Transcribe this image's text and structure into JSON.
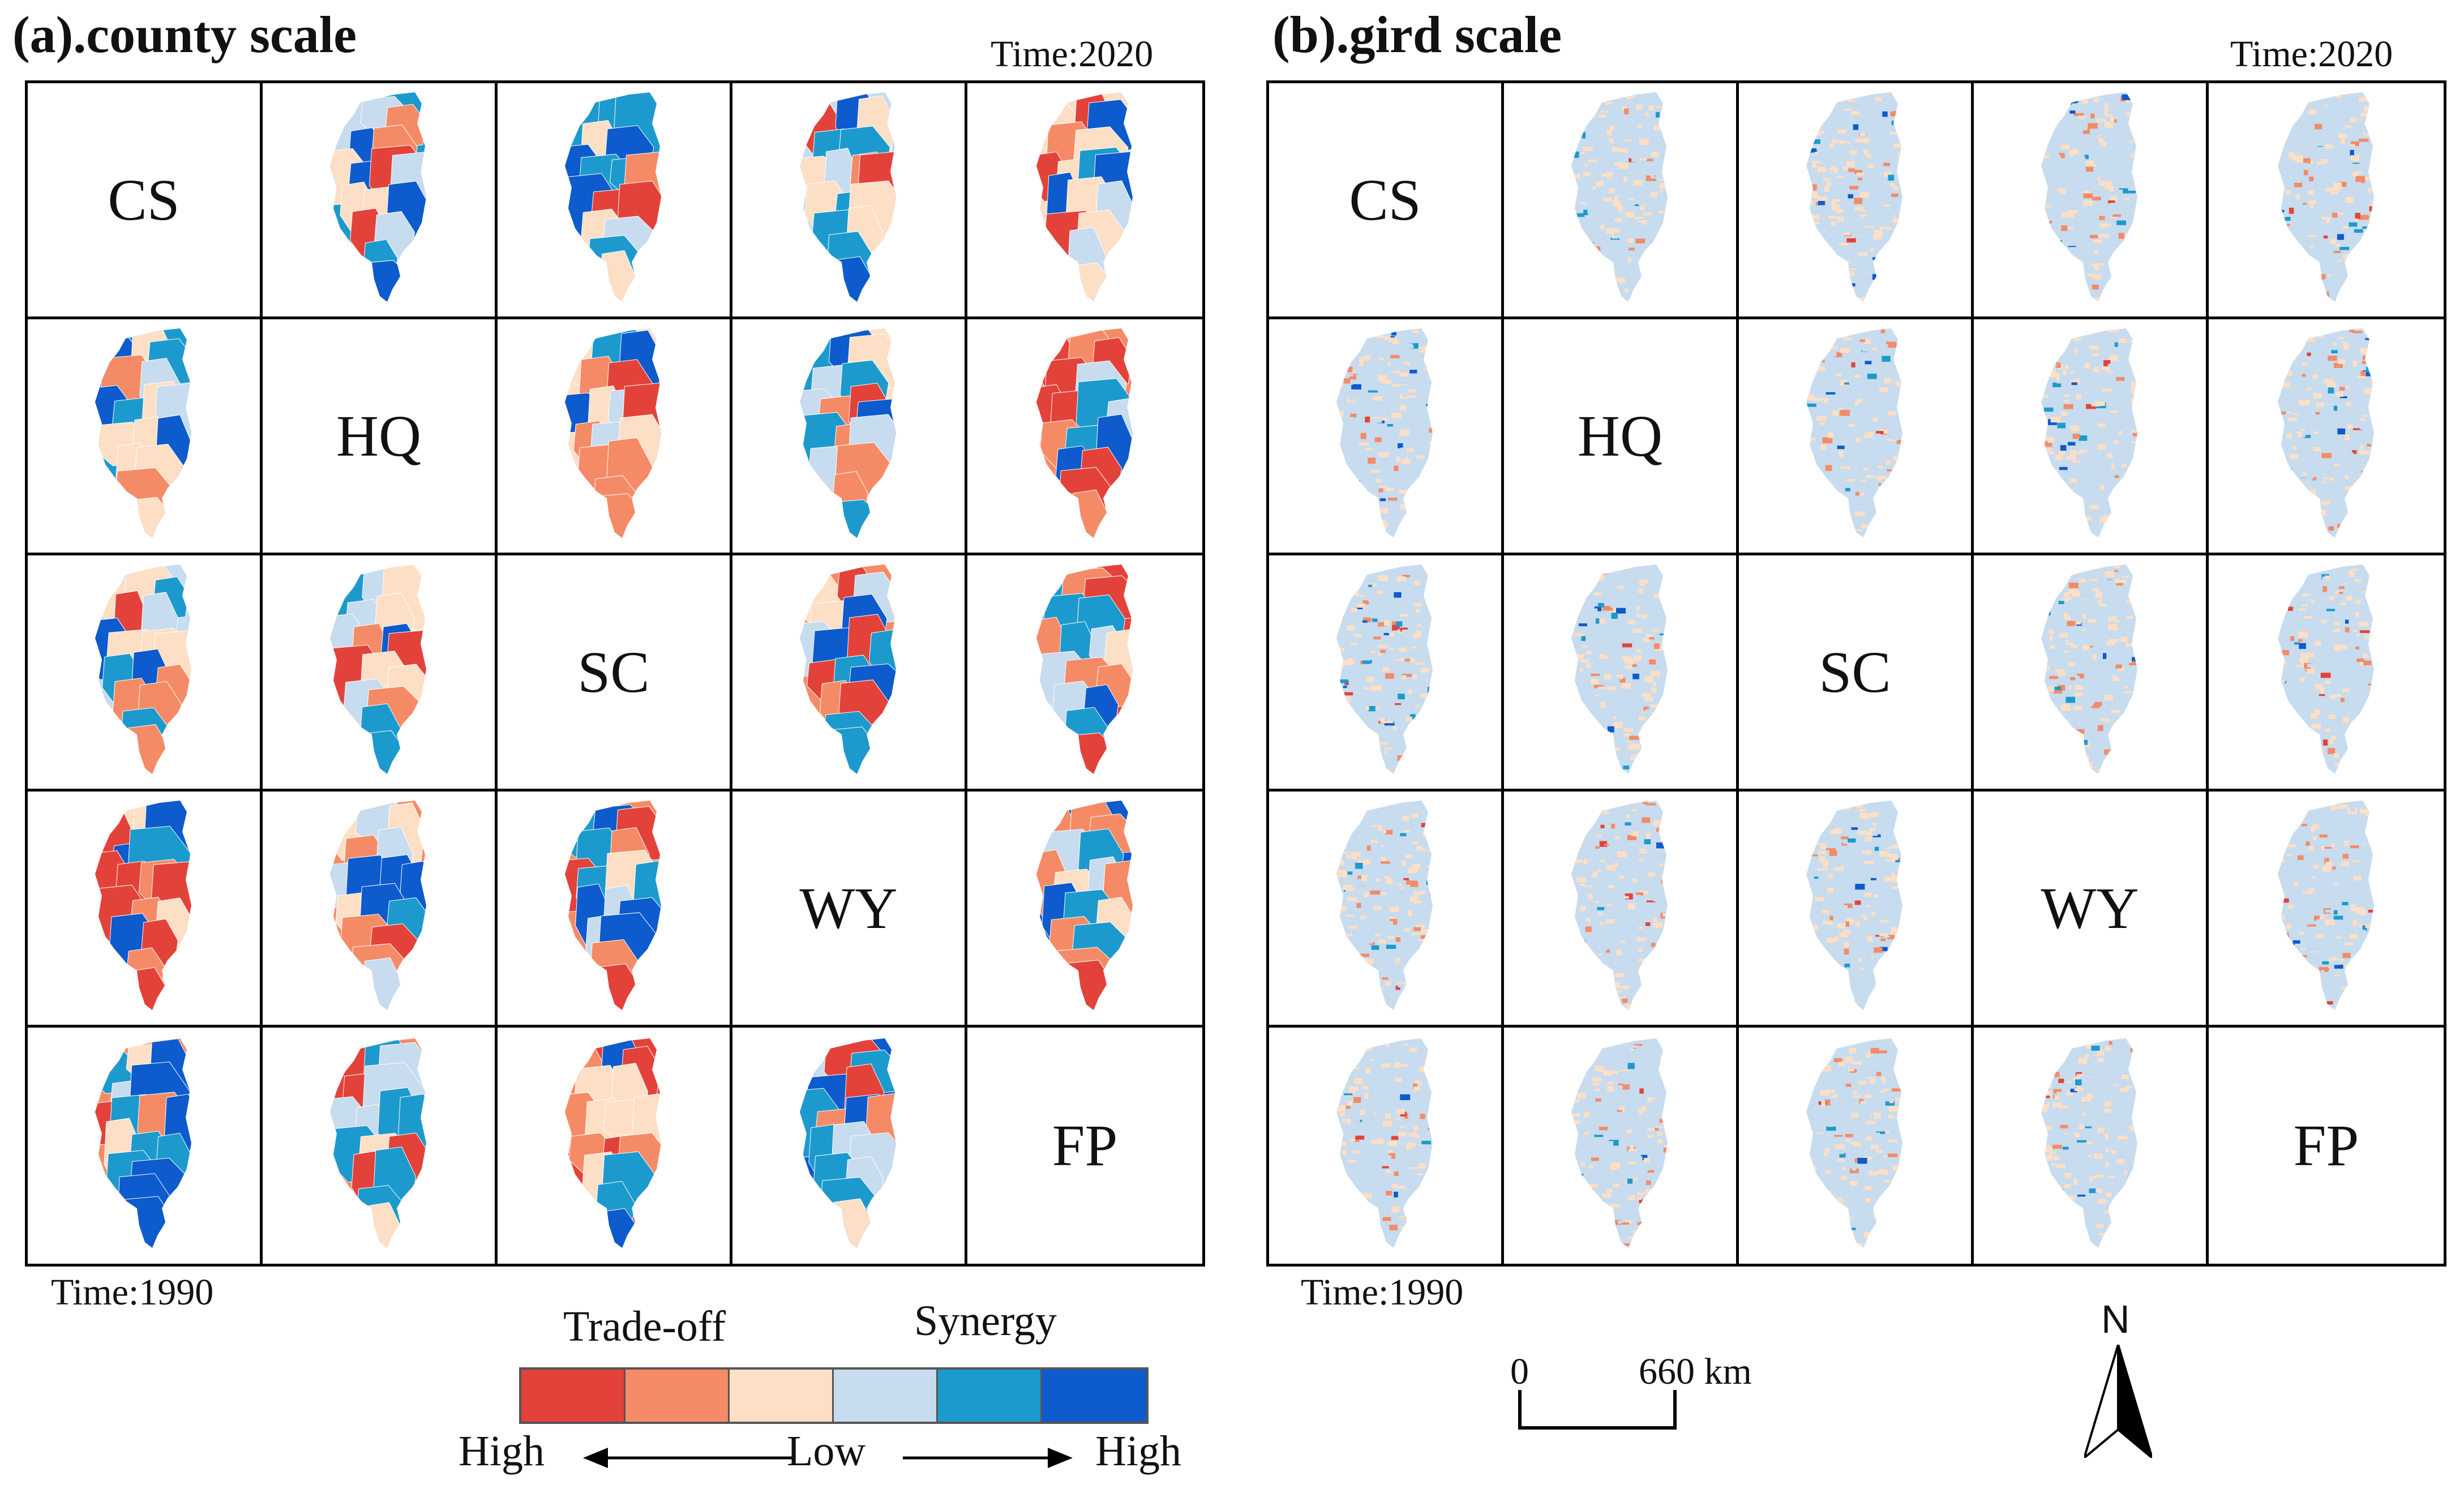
{
  "panels": [
    {
      "title": "(a).county scale",
      "time_top": "Time:2020",
      "time_bottom": "Time:1990",
      "style": "county"
    },
    {
      "title": "(b).gird scale",
      "time_top": "Time:2020",
      "time_bottom": "Time:1990",
      "style": "grid"
    }
  ],
  "labels": [
    "CS",
    "HQ",
    "SC",
    "WY",
    "FP"
  ],
  "legend": {
    "left_heading": "Trade-off",
    "right_heading": "Synergy",
    "low": "Low",
    "high_left": "High",
    "high_right": "High",
    "colors": [
      "#e3423a",
      "#f58b66",
      "#fddfc6",
      "#c7dcee",
      "#1d9acd",
      "#0d5bcc"
    ]
  },
  "scale_bar": {
    "start": "0",
    "end": "660 km"
  },
  "north": "N"
}
